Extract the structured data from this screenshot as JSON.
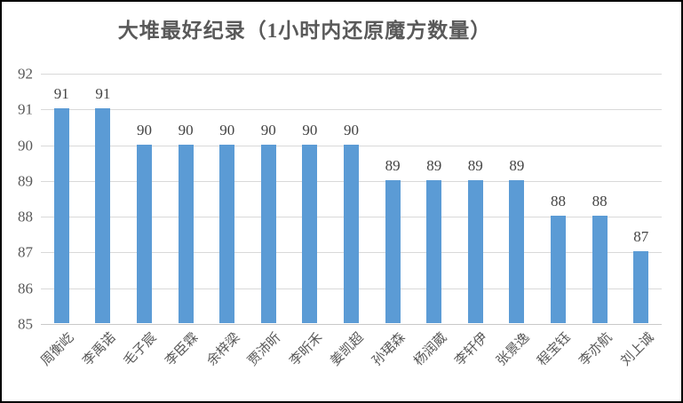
{
  "colors": {
    "bar": "#5b9bd5",
    "grid": "#d9d9d9",
    "axis_line": "#c9c9c9",
    "axis_text": "#595959",
    "data_label": "#444444",
    "title": "#595959",
    "frame_border": "#000000"
  },
  "chart_data": {
    "type": "bar",
    "title": "大堆最好纪录（1小时内还原魔方数量）",
    "xlabel": "",
    "ylabel": "",
    "categories": [
      "周衡屹",
      "李禹诺",
      "毛子宸",
      "李臣霖",
      "余梓梁",
      "贾沛昕",
      "李昕禾",
      "姜凯超",
      "孙珺森",
      "杨润葳",
      "李轩伊",
      "张景逸",
      "程宝钰",
      "李亦航",
      "刘上诚"
    ],
    "values": [
      91,
      91,
      90,
      90,
      90,
      90,
      90,
      90,
      89,
      89,
      89,
      89,
      88,
      88,
      87
    ],
    "ylim": [
      85,
      92
    ],
    "yticks": [
      85,
      86,
      87,
      88,
      89,
      90,
      91,
      92
    ],
    "grid": true,
    "legend": false,
    "data_labels": true,
    "bars_start_at": 85,
    "category_label_rotation_deg": -45
  }
}
